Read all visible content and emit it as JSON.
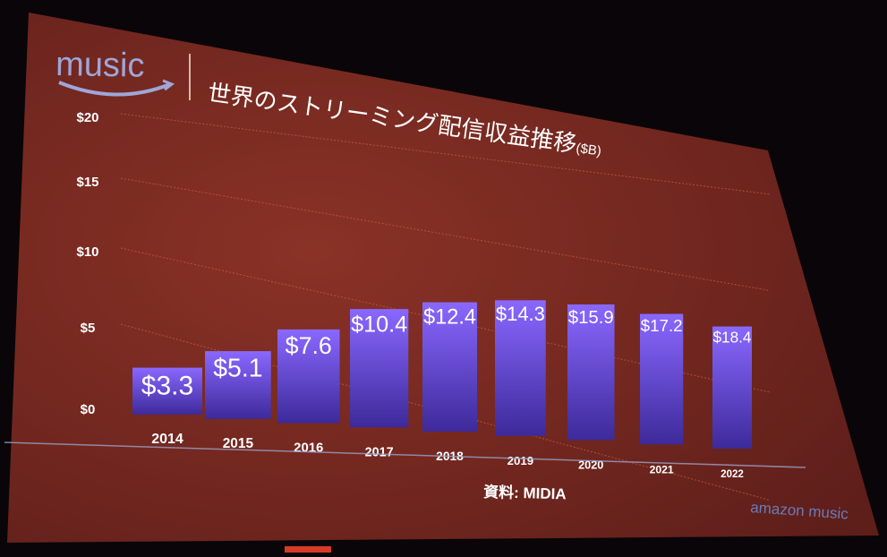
{
  "slide": {
    "logo_word": "music",
    "title": "世界のストリーミング配信収益推移",
    "title_unit": "($B)",
    "source": "資料: MIDIA",
    "brand": "amazon music"
  },
  "colors": {
    "background": "#7a2a22",
    "bar_top": "#8a68ff",
    "bar_bottom": "#3d2a9a",
    "text": "#ffffff",
    "logo": "#9fa6d9"
  },
  "chart_data": {
    "type": "bar",
    "title": "世界のストリーミング配信収益推移($B)",
    "categories": [
      "2014",
      "2015",
      "2016",
      "2017",
      "2018",
      "2019",
      "2020",
      "2021",
      "2022"
    ],
    "values": [
      3.3,
      5.1,
      7.6,
      10.4,
      12.4,
      14.3,
      15.9,
      17.2,
      18.4
    ],
    "data_labels": [
      "$3.3",
      "$5.1",
      "$7.6",
      "$10.4",
      "$12.4",
      "$14.3",
      "$15.9",
      "$17.2",
      "$18.4"
    ],
    "y_ticks": [
      "$0",
      "$5",
      "$10",
      "$15",
      "$20"
    ],
    "ylim": [
      0,
      20
    ],
    "grid": true,
    "legend": "none"
  }
}
